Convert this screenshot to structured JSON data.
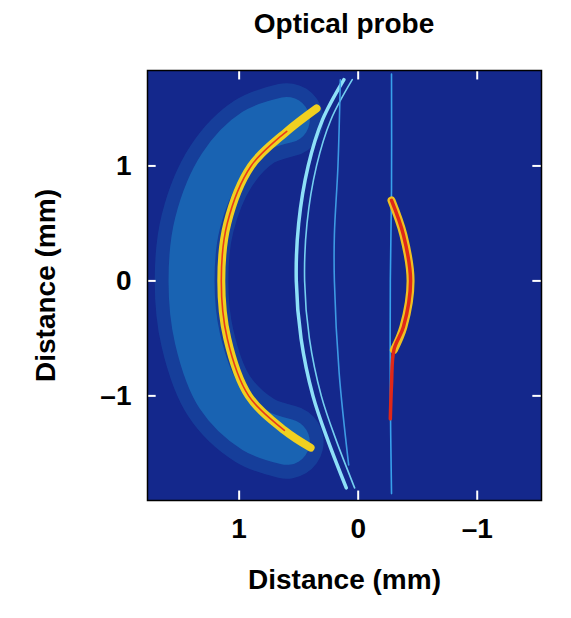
{
  "chart_data": {
    "type": "image",
    "title": "Optical probe",
    "x_label": "Distance (mm)",
    "y_label": "Distance (mm)",
    "xlim": [
      1.77,
      -1.54
    ],
    "ylim": [
      -1.91,
      1.83
    ],
    "xticks": [
      1,
      0,
      {
        "value": -1,
        "label": "–1"
      }
    ],
    "yticks": [
      {
        "value": -1,
        "label": "–1"
      },
      0,
      1
    ],
    "grid": false,
    "color": "#14288c",
    "series": [
      {
        "color": "#1fa8e0",
        "line_style": "glow",
        "x": [
          0.6,
          0.87,
          1.15,
          1.35,
          1.4,
          1.35,
          1.17,
          0.87,
          0.6
        ],
        "y": [
          1.4,
          1.3,
          1.0,
          0.5,
          0.0,
          -0.5,
          -1.0,
          -1.3,
          -1.4
        ]
      },
      {
        "color": "#f0d020",
        "line_style": "bright",
        "x": [
          0.35,
          0.6,
          0.9,
          1.1,
          1.15,
          1.1,
          0.92,
          0.62,
          0.4
        ],
        "y": [
          1.5,
          1.3,
          1.0,
          0.5,
          0.0,
          -0.5,
          -1.0,
          -1.3,
          -1.45
        ]
      },
      {
        "color": "#e8301a",
        "line_style": "thin",
        "x": [
          0.6,
          0.9,
          1.1,
          1.15,
          1.1,
          0.92,
          0.62
        ],
        "y": [
          1.3,
          1.0,
          0.5,
          0.0,
          -0.5,
          -1.0,
          -1.3
        ]
      },
      {
        "color": "#8ee0f8",
        "line_style": "solid",
        "x": [
          0.12,
          0.3,
          0.42,
          0.5,
          0.52,
          0.48,
          0.38,
          0.25,
          0.1
        ],
        "y": [
          1.75,
          1.4,
          1.0,
          0.5,
          0.0,
          -0.5,
          -1.0,
          -1.4,
          -1.8
        ]
      },
      {
        "color": "#7ad8f5",
        "line_style": "thin",
        "x": [
          0.05,
          0.23,
          0.35,
          0.43,
          0.45,
          0.41,
          0.31,
          0.18,
          0.03
        ],
        "y": [
          1.75,
          1.4,
          1.0,
          0.5,
          0.0,
          -0.5,
          -1.0,
          -1.4,
          -1.8
        ]
      },
      {
        "color": "#3fa0e8",
        "line_style": "thin",
        "x": [
          0.15,
          0.17,
          0.2,
          0.2,
          0.16,
          0.08
        ],
        "y": [
          1.75,
          1.0,
          0.4,
          0.0,
          -0.8,
          -1.6
        ]
      },
      {
        "color": "#3aa8f0",
        "line_style": "thin",
        "x": [
          -0.28,
          -0.28,
          -0.27,
          -0.27,
          -0.28
        ],
        "y": [
          1.8,
          0.8,
          0.0,
          -1.0,
          -1.85
        ]
      },
      {
        "color": "#f0c020",
        "line_style": "bright",
        "x": [
          -0.28,
          -0.38,
          -0.44,
          -0.38,
          -0.3
        ],
        "y": [
          0.7,
          0.4,
          0.0,
          -0.4,
          -0.6
        ]
      },
      {
        "color": "#e02818",
        "line_style": "solid",
        "x": [
          -0.28,
          -0.38,
          -0.44,
          -0.38,
          -0.3,
          -0.28,
          -0.27
        ],
        "y": [
          0.7,
          0.4,
          0.0,
          -0.4,
          -0.6,
          -0.9,
          -1.2
        ]
      }
    ]
  }
}
